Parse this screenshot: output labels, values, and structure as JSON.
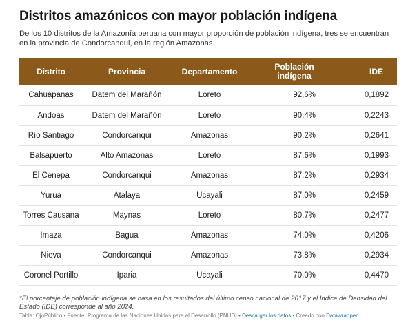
{
  "title": "Distritos amazónicos con mayor población indígena",
  "subtitle": "De los 10 distritos de la Amazonía peruana con mayor proporción de población indígena, tres se encuentran en la provincia de Condorcanqui, en la región Amazonas.",
  "table": {
    "headers": [
      "Distrito",
      "Provincia",
      "Departamento",
      "Población indígena",
      "IDE"
    ],
    "header_color": "#8b5a1a",
    "rows": [
      [
        "Cahuapanas",
        "Datem del Marañón",
        "Loreto",
        "92,6%",
        "0,1892"
      ],
      [
        "Andoas",
        "Datem del Marañón",
        "Loreto",
        "90,4%",
        "0,2243"
      ],
      [
        "Río Santiago",
        "Condorcanqui",
        "Amazonas",
        "90,2%",
        "0,2641"
      ],
      [
        "Balsapuerto",
        "Alto Amazonas",
        "Loreto",
        "87,6%",
        "0,1993"
      ],
      [
        "El Cenepa",
        "Condorcanqui",
        "Amazonas",
        "87,2%",
        "0,2934"
      ],
      [
        "Yurua",
        "Atalaya",
        "Ucayali",
        "87,0%",
        "0,2459"
      ],
      [
        "Torres Causana",
        "Maynas",
        "Loreto",
        "80,7%",
        "0,2477"
      ],
      [
        "Imaza",
        "Bagua",
        "Amazonas",
        "74,0%",
        "0,4206"
      ],
      [
        "Nieva",
        "Condorcanqui",
        "Amazonas",
        "73,8%",
        "0,2934"
      ],
      [
        "Coronel Portillo",
        "Iparia",
        "Ucayali",
        "70,0%",
        "0,4470"
      ]
    ]
  },
  "note": "*El porcentaje de población indígena se basa en los resultados del último censo nacional de 2017 y el Índice de Densidad del Estado (IDE) corresponde al año 2024.",
  "footer": {
    "source": "Tabla: OjoPúblico • Fuente: Programa de las Naciones Unidas para el Desarrollo (PNUD) •",
    "download_label": "Descargar los datos",
    "created_prefix": "• Creado con",
    "created_link": "Datawrapper"
  }
}
